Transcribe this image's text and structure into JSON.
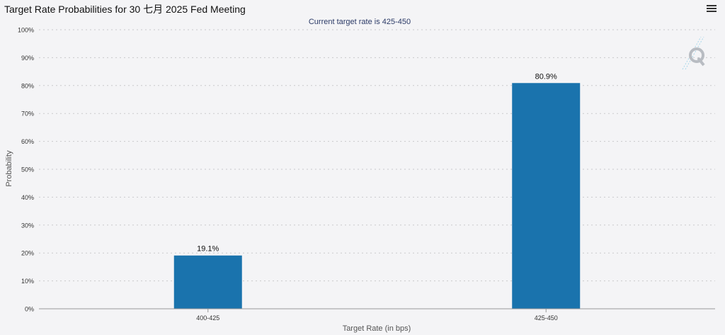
{
  "title": "Target Rate Probabilities for 30 七月 2025 Fed Meeting",
  "icons": {
    "menu": "hamburger-menu-icon",
    "watermark": "q-logo-watermark"
  },
  "colors": {
    "bar": "#1a73ad",
    "background": "#f4f4f6",
    "subtitle": "#2b3a67"
  },
  "chart_data": {
    "type": "bar",
    "title": "Target Rate Probabilities for 30 七月 2025 Fed Meeting",
    "subtitle": "Current target rate is 425-450",
    "xlabel": "Target Rate (in bps)",
    "ylabel": "Probability",
    "categories": [
      "400-425",
      "425-450"
    ],
    "values": [
      19.1,
      80.9
    ],
    "value_labels": [
      "19.1%",
      "80.9%"
    ],
    "ylim": [
      0,
      100
    ],
    "y_ticks": [
      "0%",
      "10%",
      "20%",
      "30%",
      "40%",
      "50%",
      "60%",
      "70%",
      "80%",
      "90%",
      "100%"
    ],
    "grid": true,
    "legend": "none"
  }
}
